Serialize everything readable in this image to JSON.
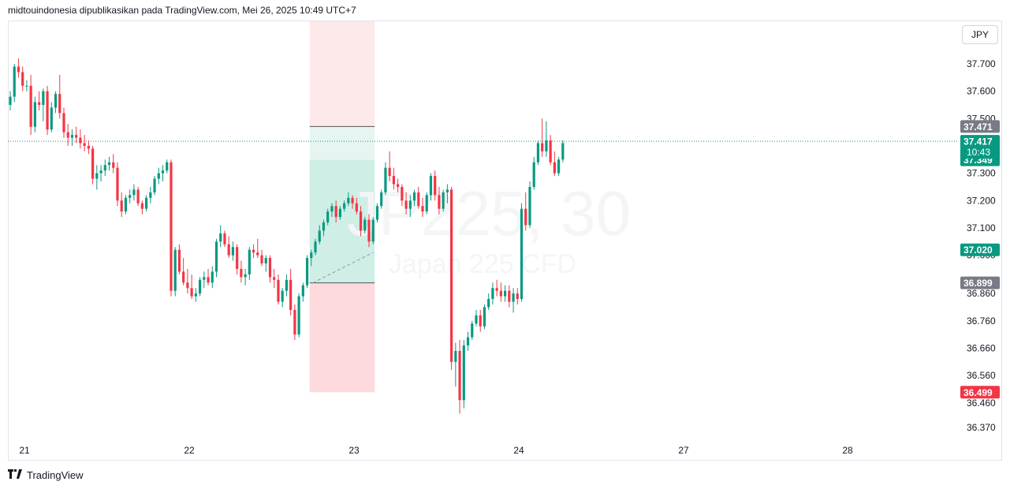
{
  "header": {
    "text": "midtouindonesia dipublikasikan pada TradingView.com, Mei 26, 2025 10:49 UTC+7"
  },
  "currency": "JPY",
  "footer": {
    "logo_text": "TradingView",
    "logo_icon": "tradingview-logo-icon"
  },
  "colors": {
    "up": "#089981",
    "down": "#f23645",
    "grid_text": "#131722",
    "gray_label": "#787b86"
  },
  "chart_data": {
    "type": "candlestick",
    "watermark": {
      "symbol": "JP225, 30",
      "name": "Japan 225 CFD"
    },
    "y_axis": {
      "ticks": [
        "37.700",
        "37.600",
        "37.500",
        "37.300",
        "37.200",
        "37.100",
        "37.000",
        "36.860",
        "36.760",
        "36.660",
        "36.560",
        "36.460",
        "36.370"
      ],
      "tick_values": [
        37700,
        37600,
        37500,
        37300,
        37200,
        37100,
        37000,
        36860,
        36760,
        36660,
        36560,
        36460,
        36370
      ]
    },
    "x_axis": {
      "labels": [
        "21",
        "22",
        "23",
        "24",
        "27",
        "28"
      ]
    },
    "current_price": {
      "value": "37.417",
      "countdown": "10:43",
      "value_num": 37417
    },
    "price_labels": [
      {
        "text": "37.471",
        "value": 37471,
        "kind": "gray"
      },
      {
        "text": "37.349",
        "value": 37349,
        "kind": "up"
      },
      {
        "text": "37.020",
        "value": 37020,
        "kind": "up"
      },
      {
        "text": "36.899",
        "value": 36899,
        "kind": "gray"
      },
      {
        "text": "36.499",
        "value": 36499,
        "kind": "down"
      }
    ],
    "position_tool": {
      "type": "long",
      "start_bar": 73,
      "end_bar": 88,
      "entry": 36899,
      "target": 37471,
      "stop": 36499,
      "close_price": 37349
    },
    "ohlc": [
      [
        37550,
        37600,
        37530,
        37580
      ],
      [
        37580,
        37700,
        37560,
        37690
      ],
      [
        37690,
        37720,
        37650,
        37670
      ],
      [
        37670,
        37690,
        37600,
        37620
      ],
      [
        37620,
        37640,
        37600,
        37620
      ],
      [
        37620,
        37660,
        37440,
        37470
      ],
      [
        37470,
        37580,
        37450,
        37560
      ],
      [
        37560,
        37600,
        37530,
        37550
      ],
      [
        37550,
        37610,
        37490,
        37600
      ],
      [
        37600,
        37620,
        37440,
        37460
      ],
      [
        37460,
        37560,
        37450,
        37540
      ],
      [
        37540,
        37600,
        37520,
        37590
      ],
      [
        37590,
        37660,
        37500,
        37520
      ],
      [
        37520,
        37540,
        37430,
        37450
      ],
      [
        37450,
        37480,
        37400,
        37430
      ],
      [
        37430,
        37460,
        37400,
        37440
      ],
      [
        37440,
        37470,
        37410,
        37430
      ],
      [
        37430,
        37460,
        37390,
        37410
      ],
      [
        37410,
        37440,
        37380,
        37400
      ],
      [
        37400,
        37420,
        37370,
        37390
      ],
      [
        37390,
        37400,
        37260,
        37280
      ],
      [
        37280,
        37330,
        37240,
        37300
      ],
      [
        37300,
        37330,
        37270,
        37310
      ],
      [
        37310,
        37350,
        37290,
        37330
      ],
      [
        37330,
        37360,
        37310,
        37340
      ],
      [
        37340,
        37370,
        37300,
        37320
      ],
      [
        37320,
        37340,
        37180,
        37200
      ],
      [
        37200,
        37230,
        37140,
        37160
      ],
      [
        37160,
        37220,
        37150,
        37210
      ],
      [
        37210,
        37240,
        37190,
        37220
      ],
      [
        37220,
        37260,
        37200,
        37240
      ],
      [
        37240,
        37250,
        37180,
        37190
      ],
      [
        37190,
        37200,
        37150,
        37170
      ],
      [
        37170,
        37220,
        37160,
        37210
      ],
      [
        37210,
        37250,
        37190,
        37230
      ],
      [
        37230,
        37290,
        37220,
        37280
      ],
      [
        37280,
        37320,
        37260,
        37300
      ],
      [
        37300,
        37330,
        37270,
        37310
      ],
      [
        37310,
        37350,
        37300,
        37340
      ],
      [
        37340,
        37350,
        36850,
        36870
      ],
      [
        36870,
        37030,
        36850,
        37020
      ],
      [
        37020,
        37040,
        36930,
        36940
      ],
      [
        36940,
        36990,
        36890,
        36900
      ],
      [
        36900,
        36950,
        36860,
        36880
      ],
      [
        36880,
        36930,
        36840,
        36850
      ],
      [
        36850,
        36880,
        36830,
        36860
      ],
      [
        36860,
        36920,
        36850,
        36910
      ],
      [
        36910,
        36940,
        36880,
        36920
      ],
      [
        36920,
        36950,
        36890,
        36900
      ],
      [
        36900,
        36960,
        36880,
        36940
      ],
      [
        36940,
        37060,
        36920,
        37050
      ],
      [
        37050,
        37110,
        37030,
        37080
      ],
      [
        37080,
        37090,
        37030,
        37040
      ],
      [
        37040,
        37070,
        36990,
        37000
      ],
      [
        37000,
        37050,
        36980,
        37030
      ],
      [
        37030,
        37040,
        36930,
        36950
      ],
      [
        36950,
        36980,
        36900,
        36920
      ],
      [
        36920,
        36950,
        36890,
        36930
      ],
      [
        36930,
        37030,
        36910,
        37020
      ],
      [
        37020,
        37040,
        36990,
        37010
      ],
      [
        37010,
        37060,
        36990,
        37000
      ],
      [
        37000,
        37020,
        36960,
        36970
      ],
      [
        36970,
        37000,
        36940,
        36990
      ],
      [
        36990,
        37000,
        36900,
        36920
      ],
      [
        36920,
        36950,
        36880,
        36910
      ],
      [
        36910,
        36930,
        36820,
        36830
      ],
      [
        36830,
        36880,
        36810,
        36870
      ],
      [
        36870,
        36930,
        36850,
        36910
      ],
      [
        36910,
        36950,
        36780,
        36800
      ],
      [
        36800,
        36820,
        36690,
        36710
      ],
      [
        36710,
        36860,
        36700,
        36850
      ],
      [
        36850,
        36900,
        36830,
        36890
      ],
      [
        36890,
        37000,
        36880,
        36990
      ],
      [
        36990,
        37020,
        36960,
        37010
      ],
      [
        37010,
        37060,
        37000,
        37050
      ],
      [
        37050,
        37110,
        37040,
        37090
      ],
      [
        37090,
        37130,
        37070,
        37120
      ],
      [
        37120,
        37170,
        37110,
        37160
      ],
      [
        37160,
        37190,
        37140,
        37180
      ],
      [
        37180,
        37200,
        37120,
        37140
      ],
      [
        37140,
        37180,
        37130,
        37170
      ],
      [
        37170,
        37200,
        37160,
        37190
      ],
      [
        37190,
        37230,
        37180,
        37210
      ],
      [
        37210,
        37220,
        37170,
        37190
      ],
      [
        37190,
        37210,
        37150,
        37160
      ],
      [
        37160,
        37180,
        37070,
        37090
      ],
      [
        37090,
        37140,
        37080,
        37130
      ],
      [
        37130,
        37150,
        37030,
        37050
      ],
      [
        37050,
        37140,
        37040,
        37130
      ],
      [
        37130,
        37190,
        37120,
        37180
      ],
      [
        37180,
        37240,
        37170,
        37230
      ],
      [
        37230,
        37340,
        37220,
        37320
      ],
      [
        37320,
        37380,
        37270,
        37290
      ],
      [
        37290,
        37320,
        37240,
        37260
      ],
      [
        37260,
        37280,
        37230,
        37250
      ],
      [
        37250,
        37260,
        37180,
        37200
      ],
      [
        37200,
        37230,
        37150,
        37170
      ],
      [
        37170,
        37220,
        37140,
        37200
      ],
      [
        37200,
        37240,
        37180,
        37230
      ],
      [
        37230,
        37250,
        37170,
        37180
      ],
      [
        37180,
        37210,
        37140,
        37160
      ],
      [
        37160,
        37230,
        37150,
        37220
      ],
      [
        37220,
        37300,
        37200,
        37290
      ],
      [
        37290,
        37310,
        37200,
        37220
      ],
      [
        37220,
        37250,
        37150,
        37170
      ],
      [
        37170,
        37240,
        37160,
        37230
      ],
      [
        37230,
        37260,
        37190,
        37240
      ],
      [
        37240,
        37250,
        36580,
        36610
      ],
      [
        36610,
        36680,
        36520,
        36650
      ],
      [
        36650,
        36690,
        36420,
        36470
      ],
      [
        36470,
        36690,
        36440,
        36670
      ],
      [
        36670,
        36720,
        36650,
        36700
      ],
      [
        36700,
        36760,
        36690,
        36750
      ],
      [
        36750,
        36800,
        36740,
        36780
      ],
      [
        36780,
        36800,
        36720,
        36740
      ],
      [
        36740,
        36820,
        36730,
        36810
      ],
      [
        36810,
        36860,
        36800,
        36840
      ],
      [
        36840,
        36900,
        36820,
        36880
      ],
      [
        36880,
        36910,
        36850,
        36870
      ],
      [
        36870,
        36900,
        36830,
        36850
      ],
      [
        36850,
        36890,
        36830,
        36870
      ],
      [
        36870,
        36890,
        36810,
        36830
      ],
      [
        36830,
        36880,
        36790,
        36860
      ],
      [
        36860,
        36880,
        36820,
        36840
      ],
      [
        36840,
        37190,
        36830,
        37170
      ],
      [
        37170,
        37230,
        37090,
        37110
      ],
      [
        37110,
        37270,
        37100,
        37250
      ],
      [
        37250,
        37360,
        37240,
        37340
      ],
      [
        37340,
        37420,
        37330,
        37410
      ],
      [
        37410,
        37500,
        37360,
        37380
      ],
      [
        37380,
        37490,
        37360,
        37420
      ],
      [
        37420,
        37440,
        37330,
        37340
      ],
      [
        37340,
        37380,
        37290,
        37300
      ],
      [
        37300,
        37360,
        37290,
        37350
      ],
      [
        37350,
        37420,
        37340,
        37410
      ]
    ]
  }
}
